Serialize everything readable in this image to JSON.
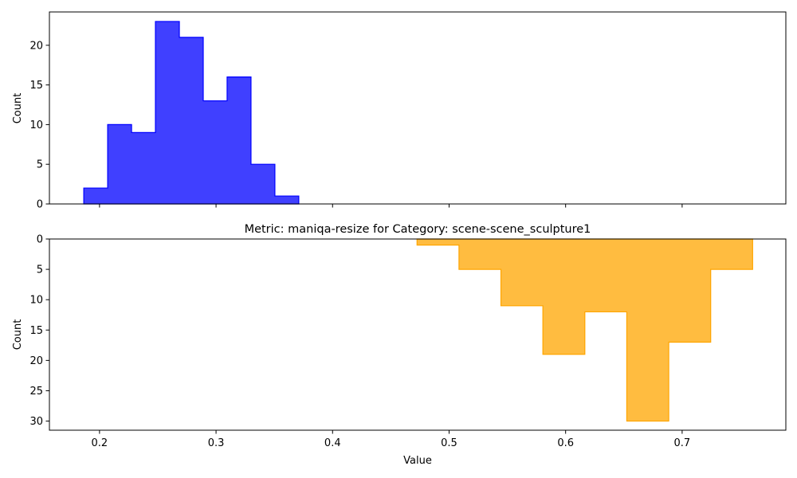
{
  "chart_data": [
    {
      "type": "histogram",
      "title": "",
      "xlabel": "",
      "ylabel": "Count",
      "xlim": [
        0.157,
        0.789
      ],
      "ylim": [
        0,
        24.2
      ],
      "y_inverted": false,
      "x_tick_labels_visible": false,
      "xticks": [
        0.2,
        0.3,
        0.4,
        0.5,
        0.6,
        0.7
      ],
      "yticks": [
        0,
        5,
        10,
        15,
        20
      ],
      "color": "#0000ff",
      "bin_edges": [
        0.1865,
        0.207,
        0.2275,
        0.248,
        0.2685,
        0.289,
        0.3095,
        0.33,
        0.3505,
        0.371
      ],
      "counts": [
        2,
        10,
        9,
        23,
        21,
        13,
        16,
        5,
        1
      ],
      "grid": false
    },
    {
      "type": "histogram",
      "title": "Metric: maniqa-resize for Category: scene-scene_sculpture1",
      "xlabel": "Value",
      "ylabel": "Count",
      "xlim": [
        0.157,
        0.789
      ],
      "ylim": [
        0,
        31.5
      ],
      "y_inverted": true,
      "x_tick_labels_visible": true,
      "xticks": [
        0.2,
        0.3,
        0.4,
        0.5,
        0.6,
        0.7
      ],
      "yticks": [
        0,
        5,
        10,
        15,
        20,
        25,
        30
      ],
      "color": "#ffa500",
      "bin_edges": [
        0.4725,
        0.5085,
        0.5445,
        0.5805,
        0.6165,
        0.6525,
        0.6885,
        0.7245,
        0.7605
      ],
      "counts": [
        1,
        5,
        11,
        19,
        12,
        30,
        17,
        5
      ],
      "grid": false
    }
  ]
}
